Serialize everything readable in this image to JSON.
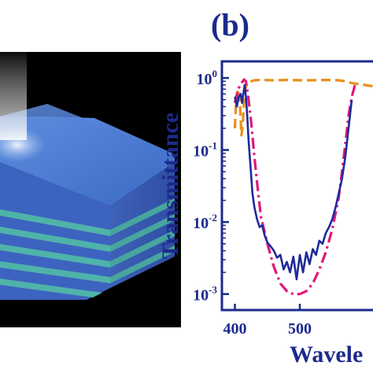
{
  "figure": {
    "panel_b_label": "(b)"
  },
  "chart_data": {
    "type": "line",
    "xlabel": "Wavele",
    "ylabel": "Transmittance",
    "xlim": [
      380,
      620
    ],
    "ylim": [
      0.0006,
      1.7
    ],
    "yscale": "log",
    "x_ticks": [
      {
        "value": 400,
        "label": "400"
      },
      {
        "value": 500,
        "label": "500"
      }
    ],
    "y_ticks": [
      {
        "value": 1,
        "base": "10",
        "exp": "0"
      },
      {
        "value": 0.1,
        "base": "10",
        "exp": "-1"
      },
      {
        "value": 0.01,
        "base": "10",
        "exp": "-2"
      },
      {
        "value": 0.001,
        "base": "10",
        "exp": "-3"
      }
    ],
    "axis_color": "#1c2a8c",
    "series": [
      {
        "color": "#e8901a",
        "style": "dash",
        "x": [
          400,
          402,
          405,
          408,
          410,
          412,
          414,
          416,
          418,
          420,
          425,
          430,
          440,
          460,
          480,
          500,
          520,
          540,
          560,
          570,
          580,
          600,
          620
        ],
        "y": [
          0.2,
          0.5,
          0.7,
          0.4,
          0.16,
          0.22,
          0.45,
          0.7,
          0.8,
          0.85,
          0.9,
          0.93,
          0.94,
          0.93,
          0.94,
          0.93,
          0.93,
          0.94,
          0.93,
          0.9,
          0.85,
          0.8,
          0.75
        ]
      },
      {
        "color": "#e0187a",
        "style": "dashdot",
        "x": [
          400,
          405,
          410,
          414,
          417,
          420,
          425,
          430,
          435,
          440,
          450,
          460,
          470,
          480,
          490,
          500,
          510,
          520,
          530,
          540,
          550,
          560,
          565,
          570,
          575,
          580,
          585
        ],
        "y": [
          0.45,
          0.7,
          0.85,
          0.95,
          0.9,
          0.6,
          0.25,
          0.08,
          0.03,
          0.012,
          0.005,
          0.0024,
          0.0014,
          0.0011,
          0.001,
          0.001,
          0.0011,
          0.0014,
          0.0022,
          0.0038,
          0.008,
          0.022,
          0.05,
          0.12,
          0.3,
          0.55,
          0.8
        ]
      },
      {
        "color": "#1f2a9c",
        "style": "solid",
        "x": [
          400,
          403,
          406,
          409,
          411,
          413,
          415,
          417,
          419,
          421,
          424,
          427,
          430,
          434,
          438,
          442,
          446,
          450,
          455,
          460,
          465,
          470,
          475,
          480,
          485,
          490,
          495,
          500,
          505,
          510,
          515,
          520,
          525,
          530,
          535,
          540,
          545,
          550,
          555,
          560,
          565,
          570,
          575,
          580
        ],
        "y": [
          0.55,
          0.4,
          0.55,
          0.6,
          0.45,
          0.6,
          0.8,
          0.55,
          0.3,
          0.14,
          0.06,
          0.025,
          0.016,
          0.011,
          0.0085,
          0.009,
          0.0065,
          0.0052,
          0.0046,
          0.004,
          0.0032,
          0.0035,
          0.0022,
          0.0028,
          0.002,
          0.0033,
          0.0016,
          0.0035,
          0.002,
          0.0038,
          0.0026,
          0.0042,
          0.0035,
          0.0055,
          0.005,
          0.007,
          0.0085,
          0.011,
          0.016,
          0.025,
          0.04,
          0.08,
          0.2,
          0.5
        ]
      }
    ]
  }
}
